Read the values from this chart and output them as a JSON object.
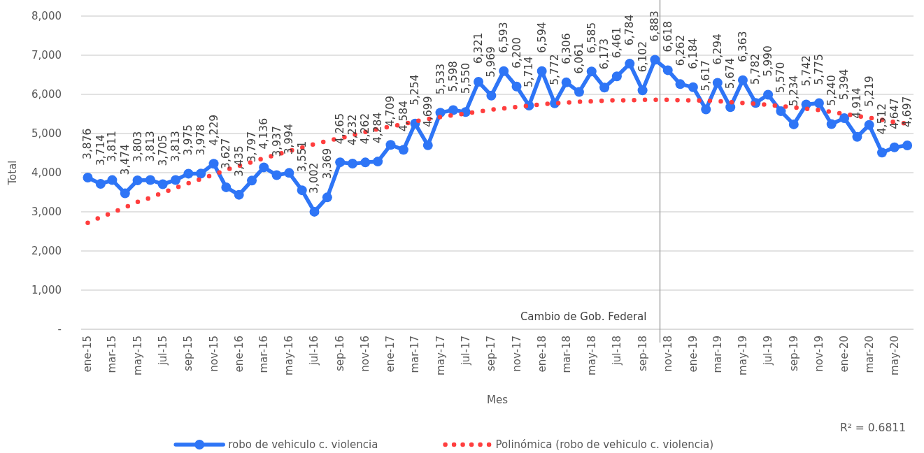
{
  "chart_data": {
    "type": "line",
    "xlabel": "Mes",
    "ylabel": "Total",
    "x": [
      "2015-01",
      "2015-02",
      "2015-03",
      "2015-04",
      "2015-05",
      "2015-06",
      "2015-07",
      "2015-08",
      "2015-09",
      "2015-10",
      "2015-11",
      "2015-12",
      "2016-01",
      "2016-02",
      "2016-03",
      "2016-04",
      "2016-05",
      "2016-06",
      "2016-07",
      "2016-08",
      "2016-09",
      "2016-10",
      "2016-11",
      "2016-12",
      "2017-01",
      "2017-02",
      "2017-03",
      "2017-04",
      "2017-05",
      "2017-06",
      "2017-07",
      "2017-08",
      "2017-09",
      "2017-10",
      "2017-11",
      "2017-12",
      "2018-01",
      "2018-02",
      "2018-03",
      "2018-04",
      "2018-05",
      "2018-06",
      "2018-07",
      "2018-08",
      "2018-09",
      "2018-10",
      "2018-11",
      "2018-12",
      "2019-01",
      "2019-02",
      "2019-03",
      "2019-04",
      "2019-05",
      "2019-06",
      "2019-07",
      "2019-08",
      "2019-09",
      "2019-10",
      "2019-11",
      "2019-12",
      "2020-01",
      "2020-02",
      "2020-03",
      "2020-04",
      "2020-05",
      "2020-06"
    ],
    "xlim": [
      "2014-12-16",
      "2020-06-16"
    ],
    "xticks": [
      {
        "value": "2015-01",
        "label": "ene-15"
      },
      {
        "value": "2015-03",
        "label": "mar-15"
      },
      {
        "value": "2015-05",
        "label": "may-15"
      },
      {
        "value": "2015-07",
        "label": "jul-15"
      },
      {
        "value": "2015-09",
        "label": "sep-15"
      },
      {
        "value": "2015-11",
        "label": "nov-15"
      },
      {
        "value": "2016-01",
        "label": "ene-16"
      },
      {
        "value": "2016-03",
        "label": "mar-16"
      },
      {
        "value": "2016-05",
        "label": "may-16"
      },
      {
        "value": "2016-07",
        "label": "jul-16"
      },
      {
        "value": "2016-09",
        "label": "sep-16"
      },
      {
        "value": "2016-11",
        "label": "nov-16"
      },
      {
        "value": "2017-01",
        "label": "ene-17"
      },
      {
        "value": "2017-03",
        "label": "mar-17"
      },
      {
        "value": "2017-05",
        "label": "may-17"
      },
      {
        "value": "2017-07",
        "label": "jul-17"
      },
      {
        "value": "2017-09",
        "label": "sep-17"
      },
      {
        "value": "2017-11",
        "label": "nov-17"
      },
      {
        "value": "2018-01",
        "label": "ene-18"
      },
      {
        "value": "2018-03",
        "label": "mar-18"
      },
      {
        "value": "2018-05",
        "label": "may-18"
      },
      {
        "value": "2018-07",
        "label": "jul-18"
      },
      {
        "value": "2018-09",
        "label": "sep-18"
      },
      {
        "value": "2018-11",
        "label": "nov-18"
      },
      {
        "value": "2019-01",
        "label": "ene-19"
      },
      {
        "value": "2019-03",
        "label": "mar-19"
      },
      {
        "value": "2019-05",
        "label": "may-19"
      },
      {
        "value": "2019-07",
        "label": "jul-19"
      },
      {
        "value": "2019-09",
        "label": "sep-19"
      },
      {
        "value": "2019-11",
        "label": "nov-19"
      },
      {
        "value": "2020-01",
        "label": "ene-20"
      },
      {
        "value": "2020-03",
        "label": "mar-20"
      },
      {
        "value": "2020-05",
        "label": "may-20"
      }
    ],
    "ylim": [
      0,
      8000
    ],
    "yticks": [
      {
        "value": 0,
        "label": "-"
      },
      {
        "value": 1000,
        "label": "1,000"
      },
      {
        "value": 2000,
        "label": "2,000"
      },
      {
        "value": 3000,
        "label": "3,000"
      },
      {
        "value": 4000,
        "label": "4,000"
      },
      {
        "value": 5000,
        "label": "5,000"
      },
      {
        "value": 6000,
        "label": "6,000"
      },
      {
        "value": 7000,
        "label": "7,000"
      },
      {
        "value": 8000,
        "label": "8,000"
      }
    ],
    "grid": "y",
    "legend": "bottom",
    "series": [
      {
        "name": "robo de vehiculo c. violencia",
        "color": "#2e75f6",
        "marker": "circle",
        "line_style": "solid",
        "values": [
          3876,
          3714,
          3811,
          3474,
          3803,
          3813,
          3705,
          3813,
          3975,
          3978,
          4229,
          3627,
          3435,
          3797,
          4136,
          3937,
          3994,
          3551,
          3002,
          3369,
          4265,
          4232,
          4262,
          4284,
          4709,
          4584,
          5254,
          4699,
          5533,
          5598,
          5550,
          6321,
          5969,
          6593,
          6200,
          5714,
          6594,
          5772,
          6306,
          6061,
          6585,
          6173,
          6461,
          6784,
          6102,
          6883,
          6618,
          6262,
          6184,
          5617,
          6294,
          5674,
          6363,
          5782,
          5990,
          5570,
          5234,
          5742,
          5775,
          5240,
          5394,
          4914,
          5219,
          4512,
          4647,
          4697
        ],
        "value_labels": [
          "3,876",
          "3,714",
          "3,811",
          "3,474",
          "3,803",
          "3,813",
          "3,705",
          "3,813",
          "3,975",
          "3,978",
          "4,229",
          "3,627",
          "3,435",
          "3,797",
          "4,136",
          "3,937",
          "3,994",
          "3,551",
          "3,002",
          "3,369",
          "4,265",
          "4,232",
          "4,262",
          "4,284",
          "4,709",
          "4,584",
          "5,254",
          "4,699",
          "5,533",
          "5,598",
          "5,550",
          "6,321",
          "5,969",
          "6,593",
          "6,200",
          "5,714",
          "6,594",
          "5,772",
          "6,306",
          "6,061",
          "6,585",
          "6,173",
          "6,461",
          "6,784",
          "6,102",
          "6,883",
          "6,618",
          "6,262",
          "6,184",
          "5,617",
          "6,294",
          "5,674",
          "6,363",
          "5,782",
          "5,990",
          "5,570",
          "5,234",
          "5,742",
          "5,775",
          "5,240",
          "5,394",
          "4,914",
          "5,219",
          "4,512",
          "4,647",
          "4,697"
        ]
      },
      {
        "name": "Polinómica (robo de vehiculo c. violencia)",
        "color": "#ff3e3e",
        "marker": "none",
        "line_style": "dotted",
        "values": [
          2720,
          2860,
          2980,
          3110,
          3250,
          3360,
          3490,
          3610,
          3730,
          3840,
          3950,
          4070,
          4170,
          4270,
          4370,
          4460,
          4550,
          4640,
          4730,
          4810,
          4880,
          4960,
          5040,
          5110,
          5180,
          5240,
          5310,
          5370,
          5420,
          5470,
          5510,
          5560,
          5610,
          5640,
          5680,
          5710,
          5750,
          5770,
          5790,
          5810,
          5820,
          5840,
          5850,
          5850,
          5860,
          5860,
          5860,
          5850,
          5850,
          5840,
          5830,
          5800,
          5780,
          5760,
          5730,
          5700,
          5670,
          5630,
          5600,
          5550,
          5500,
          5450,
          5400,
          5350,
          5290,
          5250
        ]
      }
    ],
    "ref_lines": [
      {
        "axis": "x",
        "value": "2018-10-13",
        "label": "Cambio de Gob. Federal",
        "color": "#a6a6a6"
      }
    ],
    "annotations": [
      "R² = 0.6811"
    ]
  }
}
